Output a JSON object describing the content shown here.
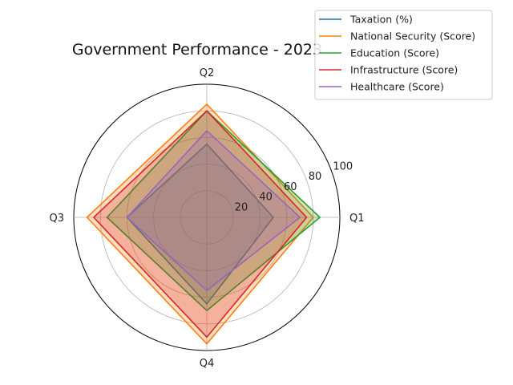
{
  "chart_data": {
    "type": "radar",
    "title": "Government Performance - 2023",
    "categories": [
      "Q1",
      "Q2",
      "Q3",
      "Q4"
    ],
    "rlim": [
      0,
      100
    ],
    "rticks": [
      20,
      40,
      60,
      80,
      100
    ],
    "rtick_labels": [
      "20",
      "40",
      "60",
      "80",
      "100"
    ],
    "grid": true,
    "legend_position": "top-right",
    "series": [
      {
        "name": "Taxation (%)",
        "color": "#1f77b4",
        "values": [
          50,
          55,
          60,
          65
        ]
      },
      {
        "name": "National Security (Score)",
        "color": "#ff7f0e",
        "values": [
          80,
          85,
          90,
          95
        ]
      },
      {
        "name": "Education (Score)",
        "color": "#2ca02c",
        "values": [
          85,
          80,
          75,
          70
        ]
      },
      {
        "name": "Infrastructure (Score)",
        "color": "#d62728",
        "values": [
          75,
          80,
          85,
          90
        ]
      },
      {
        "name": "Healthcare (Score)",
        "color": "#9467bd",
        "values": [
          70,
          65,
          60,
          55
        ]
      }
    ],
    "fill_opacity": 0.25
  }
}
